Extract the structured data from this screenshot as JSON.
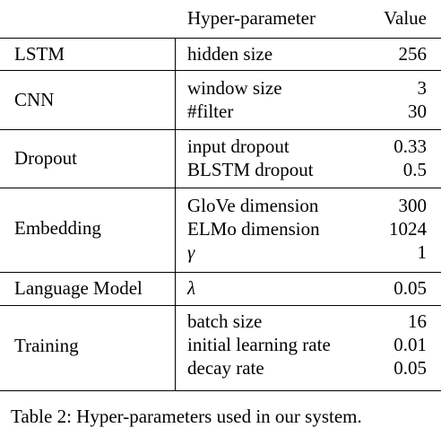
{
  "table": {
    "header": {
      "param": "Hyper-parameter",
      "value": "Value"
    },
    "groups": [
      {
        "name": "LSTM",
        "rows": [
          {
            "param": "hidden size",
            "value": "256"
          }
        ]
      },
      {
        "name": "CNN",
        "rows": [
          {
            "param": "window size",
            "value": "3"
          },
          {
            "param": "#filter",
            "value": "30"
          }
        ]
      },
      {
        "name": "Dropout",
        "rows": [
          {
            "param": "input dropout",
            "value": "0.33"
          },
          {
            "param": "BLSTM dropout",
            "value": "0.5"
          }
        ]
      },
      {
        "name": "Embedding",
        "rows": [
          {
            "param": "GloVe dimension",
            "value": "300"
          },
          {
            "param": "ELMo dimension",
            "value": "1024"
          },
          {
            "param": "γ",
            "value": "1"
          }
        ]
      },
      {
        "name": "Language Model",
        "rows": [
          {
            "param": "λ",
            "value": "0.05"
          }
        ]
      },
      {
        "name": "Training",
        "rows": [
          {
            "param": "batch size",
            "value": "16"
          },
          {
            "param": "initial learning rate",
            "value": "0.01"
          },
          {
            "param": "decay rate",
            "value": "0.05"
          }
        ]
      }
    ]
  },
  "caption": "Table 2: Hyper-parameters used in our system."
}
